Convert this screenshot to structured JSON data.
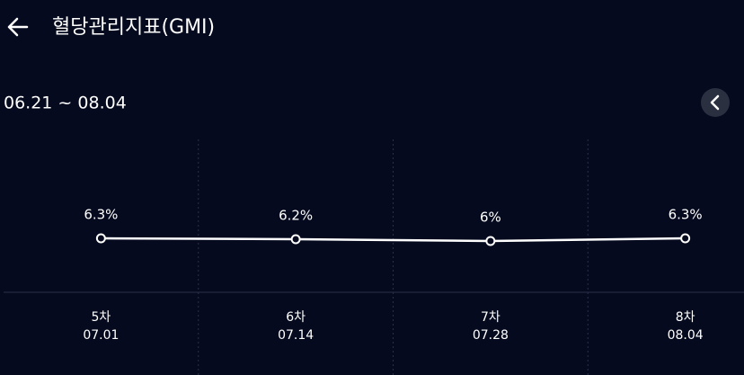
{
  "header": {
    "title": "혈당관리지표(GMI)"
  },
  "date_range": "06.21 ~ 08.04",
  "chart_data": {
    "type": "line",
    "categories": [
      "5차",
      "6차",
      "7차",
      "8차"
    ],
    "dates": [
      "07.01",
      "07.14",
      "07.28",
      "08.04"
    ],
    "values": [
      6.3,
      6.2,
      6,
      6.3
    ],
    "value_labels": [
      "6.3%",
      "6.2%",
      "6%",
      "6.3%"
    ],
    "color": "#ffffff"
  }
}
